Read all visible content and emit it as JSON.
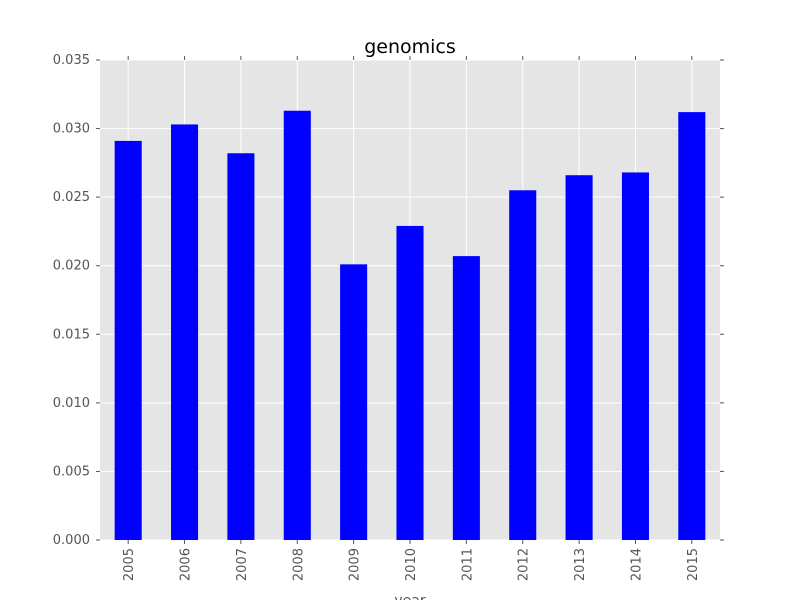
{
  "chart_data": {
    "type": "bar",
    "title": "genomics",
    "xlabel": "year",
    "ylabel": "",
    "categories": [
      "2005",
      "2006",
      "2007",
      "2008",
      "2009",
      "2010",
      "2011",
      "2012",
      "2013",
      "2014",
      "2015"
    ],
    "values": [
      0.0291,
      0.0303,
      0.0282,
      0.0313,
      0.0201,
      0.0229,
      0.0207,
      0.0255,
      0.0266,
      0.0268,
      0.0312
    ],
    "ylim": [
      0,
      0.035
    ],
    "yticks": [
      "0.000",
      "0.005",
      "0.010",
      "0.015",
      "0.020",
      "0.025",
      "0.030",
      "0.035"
    ],
    "ytick_values": [
      0,
      0.005,
      0.01,
      0.015,
      0.02,
      0.025,
      0.03,
      0.035
    ],
    "grid": true,
    "colors": {
      "bar": "#0000ff",
      "background": "#e5e5e5",
      "grid": "#ffffff"
    }
  }
}
